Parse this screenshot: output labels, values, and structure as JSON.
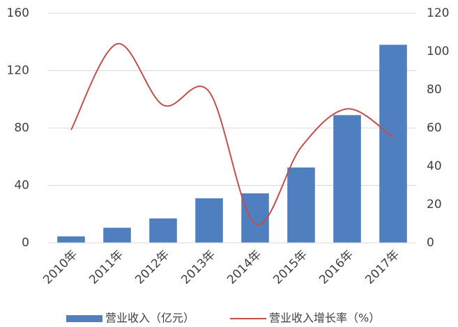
{
  "chart_data": {
    "type": "bar",
    "categories": [
      "2010年",
      "2011年",
      "2012年",
      "2013年",
      "2014年",
      "2015年",
      "2016年",
      "2017年"
    ],
    "series": [
      {
        "name": "营业收入（亿元）",
        "type": "bar",
        "color": "#4f7fbf",
        "values": [
          4.5,
          10.5,
          17,
          31,
          34.5,
          52.5,
          89,
          138
        ]
      },
      {
        "name": "营业收入增长率（%）",
        "type": "line",
        "axis": "y2",
        "color": "#c0504d",
        "values": [
          59,
          104,
          72,
          79,
          10,
          50,
          70,
          55
        ]
      }
    ],
    "ylim": [
      0,
      160
    ],
    "yticks": [
      0,
      40,
      80,
      120,
      160
    ],
    "y2lim": [
      0,
      120
    ],
    "y2ticks": [
      0,
      20,
      40,
      60,
      80,
      100,
      120
    ],
    "grid": true,
    "legend": "bottom"
  }
}
